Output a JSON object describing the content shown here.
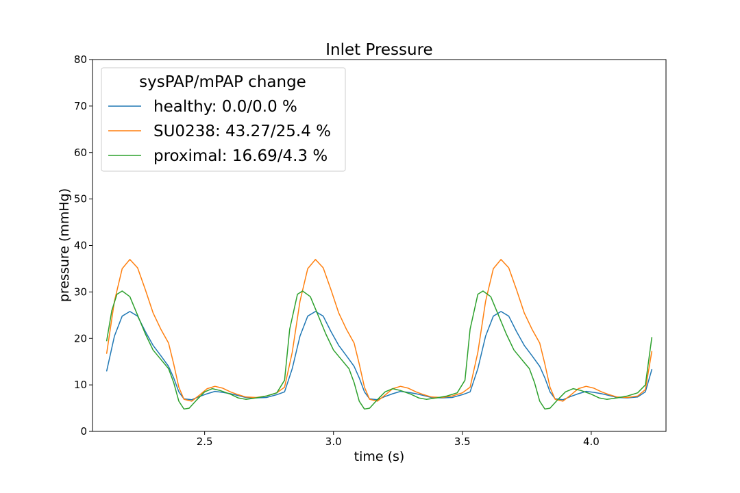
{
  "chart_data": {
    "type": "line",
    "title": "Inlet Pressure",
    "xlabel": "time (s)",
    "ylabel": "pressure (mmHg)",
    "xlim": [
      2.065,
      4.29
    ],
    "ylim": [
      0,
      80
    ],
    "xticks": [
      2.5,
      3.0,
      3.5,
      4.0
    ],
    "xtick_labels": [
      "2.5",
      "3.0",
      "3.5",
      "4.0"
    ],
    "yticks": [
      0,
      10,
      20,
      30,
      40,
      50,
      60,
      70,
      80
    ],
    "ytick_labels": [
      "0",
      "10",
      "20",
      "30",
      "40",
      "50",
      "60",
      "70",
      "80"
    ],
    "grid": false,
    "legend": {
      "title": "sysPAP/mPAP change",
      "placement": "top-left"
    },
    "series": [
      {
        "name": "healthy: 0.0/0.0 %",
        "color": "#1f77b4",
        "points": [
          [
            2.12,
            13.0
          ],
          [
            2.15,
            20.5
          ],
          [
            2.18,
            24.8
          ],
          [
            2.21,
            25.8
          ],
          [
            2.24,
            24.8
          ],
          [
            2.27,
            21.5
          ],
          [
            2.3,
            18.5
          ],
          [
            2.33,
            16.3
          ],
          [
            2.36,
            14.0
          ],
          [
            2.38,
            11.5
          ],
          [
            2.4,
            8.5
          ],
          [
            2.42,
            7.0
          ],
          [
            2.45,
            6.8
          ],
          [
            2.48,
            7.5
          ],
          [
            2.51,
            8.1
          ],
          [
            2.54,
            8.6
          ],
          [
            2.57,
            8.4
          ],
          [
            2.6,
            8.1
          ],
          [
            2.63,
            7.7
          ],
          [
            2.66,
            7.3
          ],
          [
            2.7,
            7.2
          ],
          [
            2.74,
            7.3
          ],
          [
            2.78,
            7.9
          ],
          [
            2.81,
            8.5
          ],
          [
            2.84,
            13.5
          ],
          [
            2.87,
            20.5
          ],
          [
            2.9,
            24.8
          ],
          [
            2.93,
            25.8
          ],
          [
            2.96,
            24.8
          ],
          [
            2.99,
            21.5
          ],
          [
            3.02,
            18.5
          ],
          [
            3.05,
            16.3
          ],
          [
            3.08,
            14.0
          ],
          [
            3.1,
            11.5
          ],
          [
            3.12,
            8.5
          ],
          [
            3.14,
            7.0
          ],
          [
            3.17,
            6.8
          ],
          [
            3.2,
            7.5
          ],
          [
            3.23,
            8.1
          ],
          [
            3.26,
            8.6
          ],
          [
            3.29,
            8.4
          ],
          [
            3.32,
            8.1
          ],
          [
            3.35,
            7.7
          ],
          [
            3.38,
            7.3
          ],
          [
            3.42,
            7.2
          ],
          [
            3.46,
            7.3
          ],
          [
            3.5,
            7.9
          ],
          [
            3.53,
            8.5
          ],
          [
            3.56,
            13.5
          ],
          [
            3.59,
            20.5
          ],
          [
            3.62,
            24.8
          ],
          [
            3.65,
            25.8
          ],
          [
            3.68,
            24.8
          ],
          [
            3.71,
            21.5
          ],
          [
            3.74,
            18.5
          ],
          [
            3.77,
            16.3
          ],
          [
            3.8,
            14.0
          ],
          [
            3.82,
            11.5
          ],
          [
            3.84,
            8.5
          ],
          [
            3.86,
            7.0
          ],
          [
            3.89,
            6.8
          ],
          [
            3.92,
            7.5
          ],
          [
            3.95,
            8.1
          ],
          [
            3.98,
            8.6
          ],
          [
            4.01,
            8.4
          ],
          [
            4.04,
            8.1
          ],
          [
            4.07,
            7.7
          ],
          [
            4.1,
            7.3
          ],
          [
            4.14,
            7.2
          ],
          [
            4.18,
            7.4
          ],
          [
            4.21,
            8.5
          ],
          [
            4.235,
            13.3
          ]
        ]
      },
      {
        "name": "SU0238: 43.27/25.4 %",
        "color": "#ff7f0e",
        "points": [
          [
            2.12,
            16.8
          ],
          [
            2.15,
            28.0
          ],
          [
            2.18,
            35.0
          ],
          [
            2.21,
            37.0
          ],
          [
            2.24,
            35.2
          ],
          [
            2.27,
            30.5
          ],
          [
            2.3,
            25.5
          ],
          [
            2.33,
            22.0
          ],
          [
            2.36,
            19.0
          ],
          [
            2.38,
            14.5
          ],
          [
            2.4,
            9.5
          ],
          [
            2.42,
            6.9
          ],
          [
            2.45,
            6.5
          ],
          [
            2.48,
            7.8
          ],
          [
            2.51,
            9.2
          ],
          [
            2.54,
            9.7
          ],
          [
            2.57,
            9.3
          ],
          [
            2.6,
            8.5
          ],
          [
            2.63,
            7.9
          ],
          [
            2.66,
            7.4
          ],
          [
            2.7,
            7.3
          ],
          [
            2.74,
            7.6
          ],
          [
            2.78,
            8.3
          ],
          [
            2.81,
            9.5
          ],
          [
            2.84,
            17.0
          ],
          [
            2.87,
            28.0
          ],
          [
            2.9,
            35.0
          ],
          [
            2.93,
            37.0
          ],
          [
            2.96,
            35.2
          ],
          [
            2.99,
            30.5
          ],
          [
            3.02,
            25.5
          ],
          [
            3.05,
            22.0
          ],
          [
            3.08,
            19.0
          ],
          [
            3.1,
            14.5
          ],
          [
            3.12,
            9.5
          ],
          [
            3.14,
            6.9
          ],
          [
            3.17,
            6.5
          ],
          [
            3.2,
            7.8
          ],
          [
            3.23,
            9.2
          ],
          [
            3.26,
            9.7
          ],
          [
            3.29,
            9.3
          ],
          [
            3.32,
            8.5
          ],
          [
            3.35,
            7.9
          ],
          [
            3.38,
            7.4
          ],
          [
            3.42,
            7.3
          ],
          [
            3.46,
            7.6
          ],
          [
            3.5,
            8.3
          ],
          [
            3.53,
            9.5
          ],
          [
            3.56,
            17.0
          ],
          [
            3.59,
            28.0
          ],
          [
            3.62,
            35.0
          ],
          [
            3.65,
            37.0
          ],
          [
            3.68,
            35.2
          ],
          [
            3.71,
            30.5
          ],
          [
            3.74,
            25.5
          ],
          [
            3.77,
            22.0
          ],
          [
            3.8,
            19.0
          ],
          [
            3.82,
            14.5
          ],
          [
            3.84,
            9.5
          ],
          [
            3.86,
            6.9
          ],
          [
            3.89,
            6.5
          ],
          [
            3.92,
            7.8
          ],
          [
            3.95,
            9.2
          ],
          [
            3.98,
            9.7
          ],
          [
            4.01,
            9.3
          ],
          [
            4.04,
            8.5
          ],
          [
            4.07,
            7.9
          ],
          [
            4.1,
            7.4
          ],
          [
            4.14,
            7.3
          ],
          [
            4.18,
            7.6
          ],
          [
            4.21,
            9.0
          ],
          [
            4.235,
            17.2
          ]
        ]
      },
      {
        "name": "proximal: 16.69/4.3 %",
        "color": "#2ca02c",
        "points": [
          [
            2.12,
            19.5
          ],
          [
            2.14,
            26.0
          ],
          [
            2.16,
            29.5
          ],
          [
            2.18,
            30.2
          ],
          [
            2.21,
            29.0
          ],
          [
            2.24,
            25.0
          ],
          [
            2.27,
            21.0
          ],
          [
            2.3,
            17.5
          ],
          [
            2.33,
            15.5
          ],
          [
            2.36,
            13.5
          ],
          [
            2.38,
            10.5
          ],
          [
            2.4,
            6.5
          ],
          [
            2.42,
            4.8
          ],
          [
            2.44,
            5.0
          ],
          [
            2.47,
            6.8
          ],
          [
            2.5,
            8.5
          ],
          [
            2.53,
            9.2
          ],
          [
            2.56,
            8.8
          ],
          [
            2.6,
            8.0
          ],
          [
            2.63,
            7.2
          ],
          [
            2.66,
            6.9
          ],
          [
            2.7,
            7.2
          ],
          [
            2.74,
            7.6
          ],
          [
            2.78,
            8.3
          ],
          [
            2.81,
            11.0
          ],
          [
            2.83,
            22.0
          ],
          [
            2.86,
            29.5
          ],
          [
            2.88,
            30.2
          ],
          [
            2.91,
            29.0
          ],
          [
            2.94,
            25.0
          ],
          [
            2.97,
            21.0
          ],
          [
            3.0,
            17.5
          ],
          [
            3.03,
            15.5
          ],
          [
            3.06,
            13.5
          ],
          [
            3.08,
            10.5
          ],
          [
            3.1,
            6.5
          ],
          [
            3.12,
            4.8
          ],
          [
            3.14,
            5.0
          ],
          [
            3.17,
            6.8
          ],
          [
            3.2,
            8.5
          ],
          [
            3.23,
            9.2
          ],
          [
            3.26,
            8.8
          ],
          [
            3.3,
            8.0
          ],
          [
            3.33,
            7.2
          ],
          [
            3.36,
            6.9
          ],
          [
            3.4,
            7.2
          ],
          [
            3.44,
            7.6
          ],
          [
            3.48,
            8.3
          ],
          [
            3.51,
            11.0
          ],
          [
            3.53,
            22.0
          ],
          [
            3.56,
            29.5
          ],
          [
            3.58,
            30.2
          ],
          [
            3.61,
            29.0
          ],
          [
            3.64,
            25.0
          ],
          [
            3.67,
            21.0
          ],
          [
            3.7,
            17.5
          ],
          [
            3.73,
            15.5
          ],
          [
            3.76,
            13.5
          ],
          [
            3.78,
            10.5
          ],
          [
            3.8,
            6.5
          ],
          [
            3.82,
            4.8
          ],
          [
            3.84,
            5.0
          ],
          [
            3.87,
            6.8
          ],
          [
            3.9,
            8.5
          ],
          [
            3.93,
            9.2
          ],
          [
            3.96,
            8.8
          ],
          [
            4.0,
            8.0
          ],
          [
            4.03,
            7.2
          ],
          [
            4.06,
            6.9
          ],
          [
            4.1,
            7.2
          ],
          [
            4.14,
            7.6
          ],
          [
            4.18,
            8.3
          ],
          [
            4.21,
            10.0
          ],
          [
            4.235,
            20.2
          ]
        ]
      }
    ]
  }
}
